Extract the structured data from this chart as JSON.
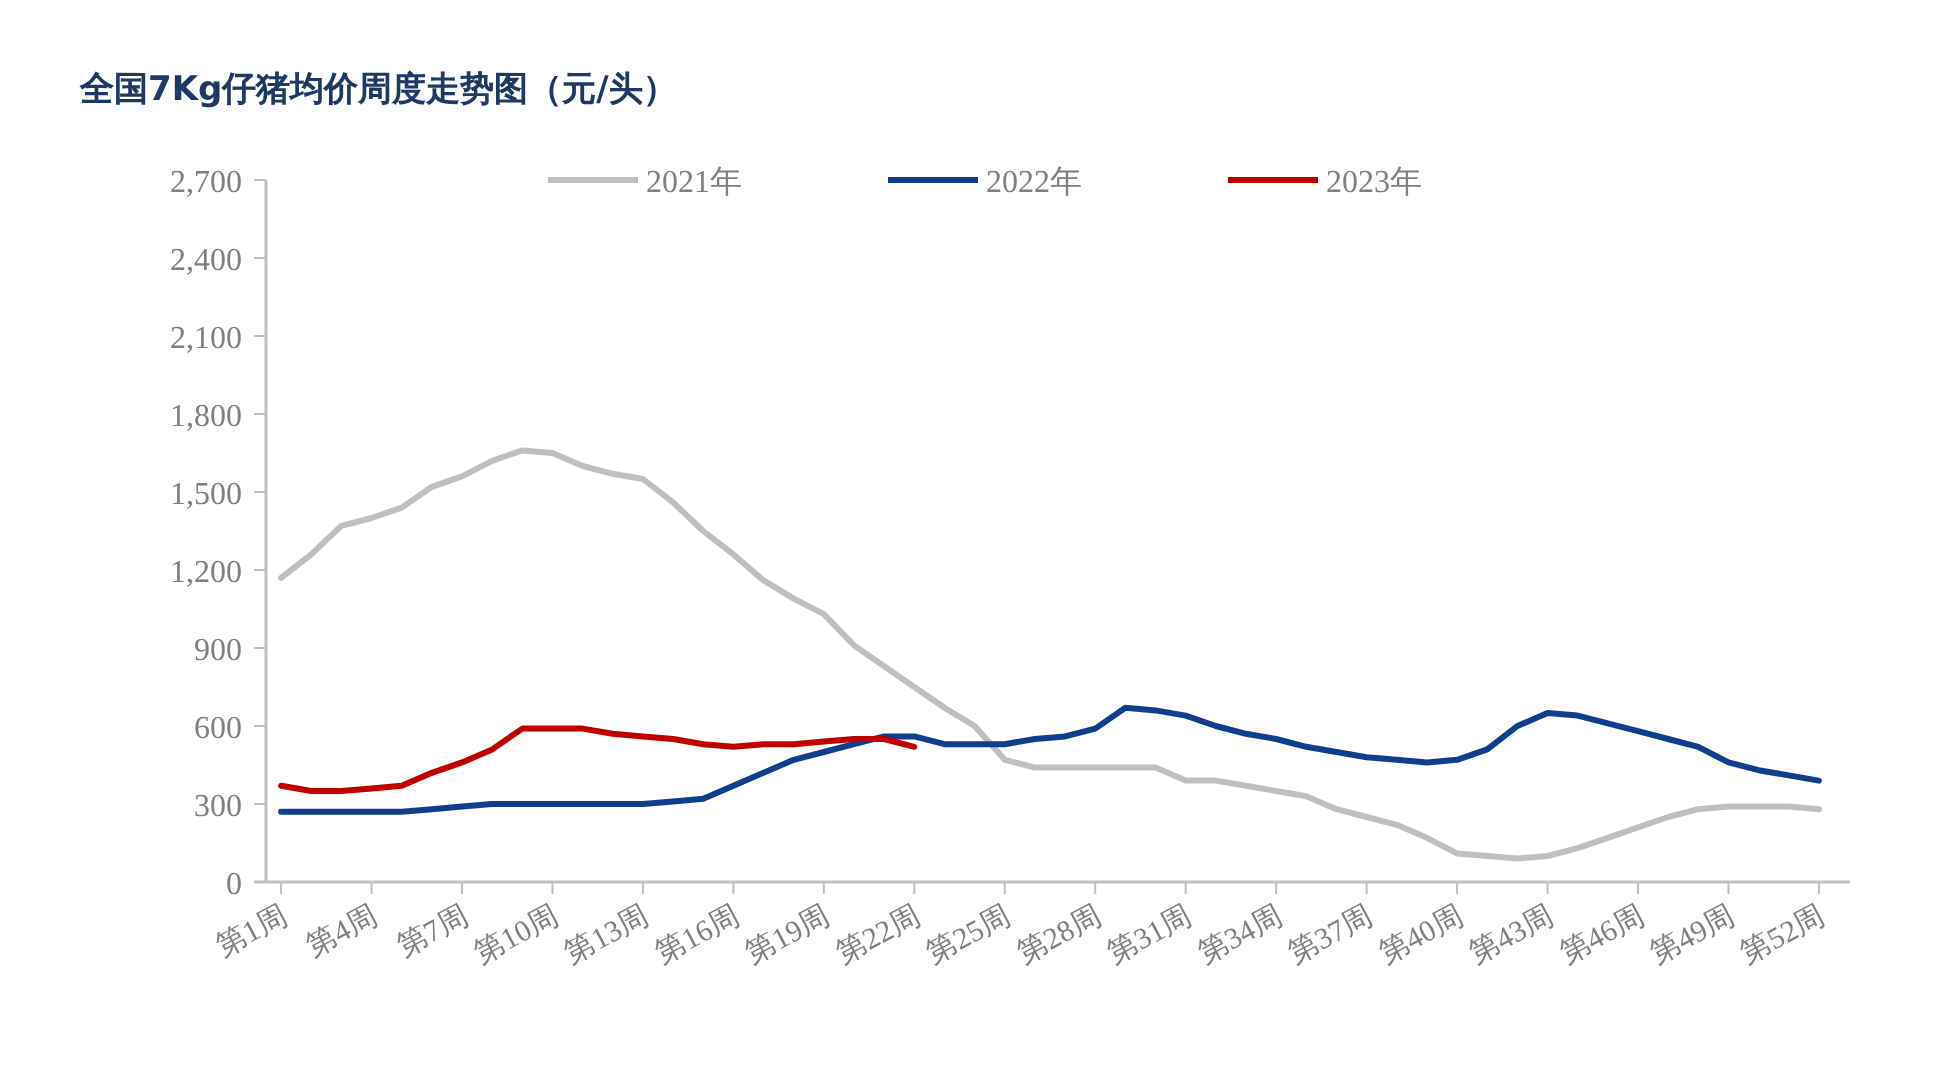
{
  "chart_data": {
    "type": "line",
    "title": "全国7Kg仔猪均价周度走势图（元/头）",
    "categories": [
      "第1周",
      null,
      null,
      "第4周",
      null,
      null,
      "第7周",
      null,
      null,
      "第10周",
      null,
      null,
      "第13周",
      null,
      null,
      "第16周",
      null,
      null,
      "第19周",
      null,
      null,
      "第22周",
      null,
      null,
      "第25周",
      null,
      null,
      "第28周",
      null,
      null,
      "第31周",
      null,
      null,
      "第34周",
      null,
      null,
      "第37周",
      null,
      null,
      "第40周",
      null,
      null,
      "第43周",
      null,
      null,
      "第46周",
      null,
      null,
      "第49周",
      null,
      null,
      "第52周"
    ],
    "series": [
      {
        "name": "2021年",
        "color": "#bfbfbf",
        "values": [
          1170,
          1260,
          1370,
          1400,
          1440,
          1520,
          1560,
          1620,
          1660,
          1650,
          1600,
          1570,
          1550,
          1460,
          1350,
          1260,
          1160,
          1090,
          1030,
          910,
          830,
          750,
          670,
          600,
          470,
          440,
          440,
          440,
          440,
          440,
          390,
          390,
          370,
          350,
          330,
          280,
          250,
          220,
          170,
          110,
          100,
          90,
          100,
          130,
          170,
          210,
          250,
          280,
          290,
          290,
          290,
          280
        ]
      },
      {
        "name": "2022年",
        "color": "#0f3f8c",
        "values": [
          270,
          270,
          270,
          270,
          270,
          280,
          290,
          300,
          300,
          300,
          300,
          300,
          300,
          310,
          320,
          370,
          420,
          470,
          500,
          530,
          560,
          560,
          530,
          530,
          530,
          550,
          560,
          590,
          670,
          660,
          640,
          600,
          570,
          550,
          520,
          500,
          480,
          470,
          460,
          470,
          510,
          600,
          650,
          640,
          610,
          580,
          550,
          520,
          460,
          430,
          410,
          390
        ]
      },
      {
        "name": "2023年",
        "color": "#c00000",
        "values": [
          370,
          350,
          350,
          360,
          370,
          420,
          460,
          510,
          590,
          590,
          590,
          570,
          560,
          550,
          530,
          520,
          530,
          530,
          540,
          550,
          550,
          520,
          null,
          null,
          null,
          null,
          null,
          null,
          null,
          null,
          null,
          null,
          null,
          null,
          null,
          null,
          null,
          null,
          null,
          null,
          null,
          null,
          null,
          null,
          null,
          null,
          null,
          null,
          null,
          null,
          null,
          null
        ]
      }
    ],
    "ylim": [
      0,
      2700
    ],
    "yticks": [
      0,
      300,
      600,
      900,
      {
        "value": 1200,
        "label": "1,200"
      },
      {
        "value": 1500,
        "label": "1,500"
      },
      {
        "value": 1800,
        "label": "1,800"
      },
      {
        "value": 2100,
        "label": "2,100"
      },
      {
        "value": 2400,
        "label": "2,400"
      },
      {
        "value": 2700,
        "label": "2,700"
      }
    ],
    "legend": "top",
    "grid": false,
    "marker": "none",
    "line_style": "solid"
  }
}
